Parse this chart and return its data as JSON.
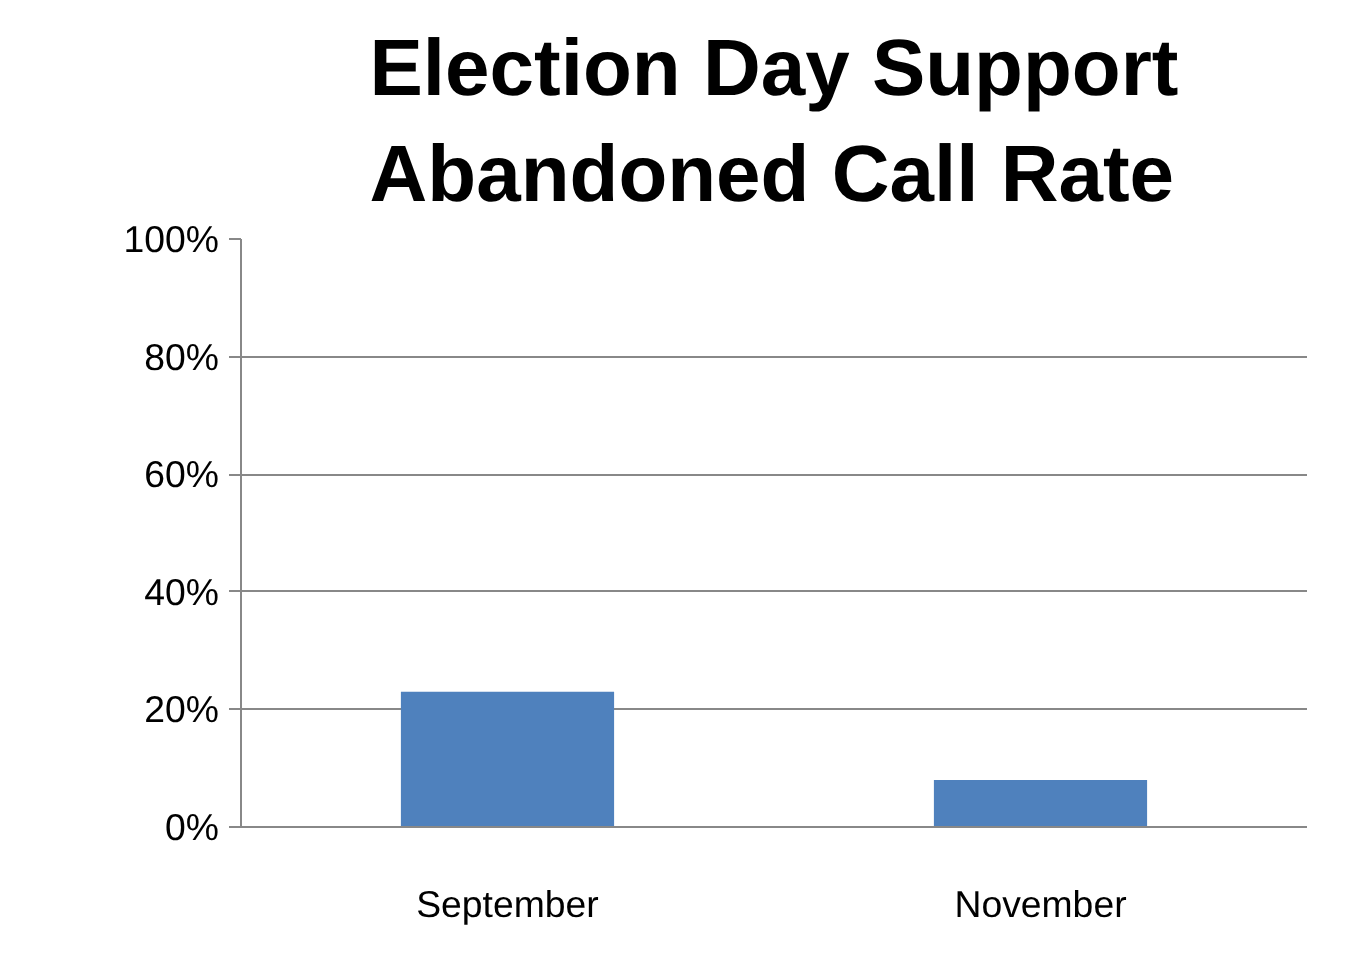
{
  "chart_data": {
    "type": "bar",
    "title": "Election Day Support\nAbandoned Call Rate",
    "categories": [
      "September",
      "November"
    ],
    "values": [
      23,
      8
    ],
    "color": "#4f81bd",
    "ylim": [
      0,
      100
    ],
    "yticks": [
      {
        "value": 0,
        "label": "0%"
      },
      {
        "value": 20,
        "label": "20%"
      },
      {
        "value": 40,
        "label": "40%"
      },
      {
        "value": 60,
        "label": "60%"
      },
      {
        "value": 80,
        "label": "80%"
      },
      {
        "value": 100,
        "label": "100%"
      }
    ],
    "grid": "y",
    "legend": false
  }
}
